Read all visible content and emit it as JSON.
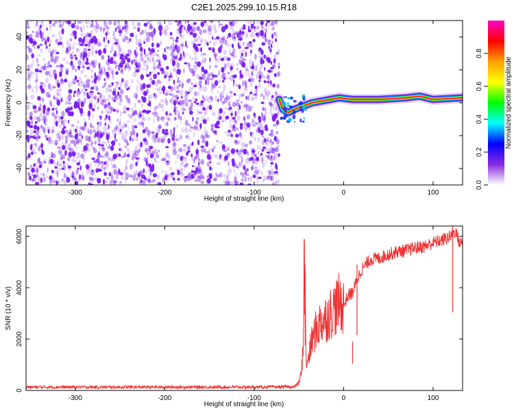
{
  "figure": {
    "title": "C2E1.2025.299.10.15.R18"
  },
  "colors": {
    "spectrogram_low": "#7a1cf0",
    "snr_line": "#ee3333",
    "background": "#ffffff",
    "axis": "#000000"
  },
  "chart_data": [
    {
      "type": "heatmap",
      "name": "spectrogram",
      "xlabel": "Height of straight line (km)",
      "ylabel": "Frequency (Hz)",
      "xlim": [
        -355,
        133
      ],
      "ylim": [
        -50,
        50
      ],
      "xticks": [
        -300,
        -200,
        -100,
        0,
        100
      ],
      "yticks": [
        -40,
        -20,
        0,
        20,
        40
      ],
      "noise_region_x": [
        -355,
        -72
      ],
      "signal_ridge": [
        {
          "x": -72,
          "f": 2
        },
        {
          "x": -68,
          "f": -4
        },
        {
          "x": -62,
          "f": -6
        },
        {
          "x": -55,
          "f": -4
        },
        {
          "x": -45,
          "f": -2
        },
        {
          "x": -35,
          "f": 0
        },
        {
          "x": -25,
          "f": 1
        },
        {
          "x": -15,
          "f": 2
        },
        {
          "x": -5,
          "f": 3
        },
        {
          "x": 10,
          "f": 2
        },
        {
          "x": 40,
          "f": 2
        },
        {
          "x": 70,
          "f": 3
        },
        {
          "x": 85,
          "f": 4
        },
        {
          "x": 100,
          "f": 2
        },
        {
          "x": 133,
          "f": 3
        }
      ],
      "colorbar": {
        "label": "Normalized spectral amplitude",
        "range": [
          0,
          1
        ],
        "ticks": [
          "0.0",
          "0.2",
          "0.4",
          "0.6",
          "0.8"
        ],
        "colors": [
          "#ff00c8",
          "#ff0000",
          "#ffa000",
          "#ffff00",
          "#00ff00",
          "#00ffff",
          "#0000ff",
          "#8a2be2",
          "#ffffff"
        ]
      }
    },
    {
      "type": "line",
      "name": "snr",
      "xlabel": "Height of straight line (km)",
      "ylabel": "SNR (10 * v/v)",
      "xlim": [
        -355,
        133
      ],
      "ylim": [
        0,
        6400
      ],
      "xticks": [
        -300,
        -200,
        -100,
        0,
        100
      ],
      "yticks": [
        0,
        2000,
        4000,
        6000
      ],
      "series": [
        {
          "name": "SNR",
          "x": [
            -355,
            -300,
            -200,
            -100,
            -55,
            -50,
            -47,
            -45,
            -44,
            -43,
            -42,
            -41,
            -40,
            -38,
            -35,
            -30,
            -25,
            -20,
            -15,
            -10,
            -5,
            0,
            5,
            10,
            15,
            20,
            30,
            40,
            50,
            60,
            70,
            80,
            90,
            100,
            110,
            120,
            125,
            130,
            133
          ],
          "y": [
            130,
            130,
            130,
            130,
            140,
            300,
            700,
            2000,
            5900,
            3500,
            1500,
            800,
            1200,
            1500,
            2000,
            2400,
            2700,
            2800,
            3000,
            3200,
            3400,
            3300,
            3700,
            3800,
            4300,
            4700,
            5100,
            5150,
            5300,
            5400,
            5450,
            5550,
            5600,
            5750,
            5850,
            6000,
            6200,
            5700,
            5800
          ],
          "spikes": [
            {
              "x": -44,
              "y": 5900
            },
            {
              "x": -43,
              "y": 4500
            },
            {
              "x": 10,
              "y": 1050
            },
            {
              "x": 15,
              "y": 4900
            },
            {
              "x": 122,
              "y": 6400
            }
          ]
        }
      ]
    }
  ]
}
